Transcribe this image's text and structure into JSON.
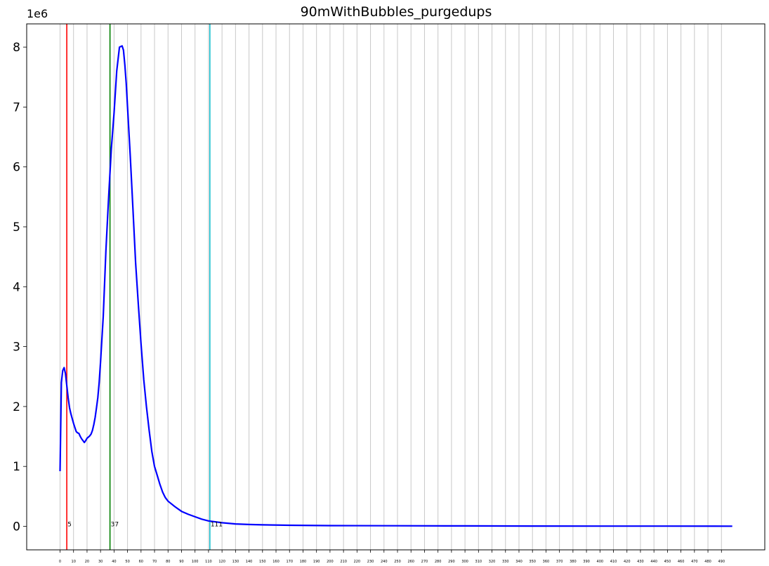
{
  "chart_data": {
    "type": "line",
    "title": "90mWithBubbles_purgedups",
    "y_offset_label": "1e6",
    "xlabel": "",
    "ylabel": "",
    "xlim": [
      -5,
      520
    ],
    "ylim": [
      -400000,
      8400000
    ],
    "grid": {
      "x": true,
      "y": false
    },
    "x_ticks": [
      0,
      10,
      20,
      30,
      40,
      50,
      60,
      70,
      80,
      90,
      100,
      110,
      120,
      130,
      140,
      150,
      160,
      170,
      180,
      190,
      200,
      210,
      220,
      230,
      240,
      250,
      260,
      270,
      280,
      290,
      300,
      310,
      320,
      330,
      340,
      350,
      360,
      370,
      380,
      390,
      400,
      410,
      420,
      430,
      440,
      450,
      460,
      470,
      480,
      490
    ],
    "y_ticks": [
      0,
      1,
      2,
      3,
      4,
      5,
      6,
      7,
      8
    ],
    "y_tick_scale": 1000000,
    "series": [
      {
        "color": "#0000ff",
        "x": [
          0,
          1,
          2,
          3,
          4,
          5,
          6,
          7,
          8,
          9,
          10,
          11,
          12,
          13,
          14,
          15,
          16,
          17,
          18,
          19,
          20,
          21,
          22,
          23,
          24,
          25,
          26,
          27,
          28,
          29,
          30,
          32,
          34,
          36,
          38,
          40,
          42,
          44,
          46,
          47,
          48,
          49,
          50,
          52,
          54,
          56,
          58,
          60,
          62,
          64,
          66,
          68,
          70,
          72,
          74,
          76,
          78,
          80,
          85,
          90,
          95,
          100,
          105,
          110,
          120,
          130,
          140,
          150,
          170,
          200,
          250,
          300,
          350,
          400,
          450,
          498
        ],
        "y": [
          920000,
          2400000,
          2600000,
          2650000,
          2550000,
          2350000,
          2150000,
          1980000,
          1880000,
          1800000,
          1720000,
          1650000,
          1580000,
          1560000,
          1550000,
          1500000,
          1460000,
          1430000,
          1400000,
          1430000,
          1470000,
          1490000,
          1510000,
          1540000,
          1600000,
          1700000,
          1820000,
          1980000,
          2150000,
          2400000,
          2750000,
          3500000,
          4600000,
          5500000,
          6300000,
          6900000,
          7600000,
          8000000,
          8020000,
          7950000,
          7700000,
          7400000,
          7000000,
          6200000,
          5300000,
          4400000,
          3700000,
          3050000,
          2450000,
          2000000,
          1600000,
          1250000,
          1000000,
          850000,
          700000,
          570000,
          480000,
          420000,
          330000,
          250000,
          200000,
          160000,
          120000,
          90000,
          60000,
          40000,
          30000,
          25000,
          18000,
          12000,
          9000,
          7000,
          5000,
          4000,
          3000,
          2000
        ]
      }
    ],
    "vlines": [
      {
        "x": 5,
        "label": "5",
        "color": "#ff0000"
      },
      {
        "x": 37,
        "label": "37",
        "color": "#008000"
      },
      {
        "x": 111,
        "label": "111",
        "color": "#17becf"
      }
    ]
  }
}
